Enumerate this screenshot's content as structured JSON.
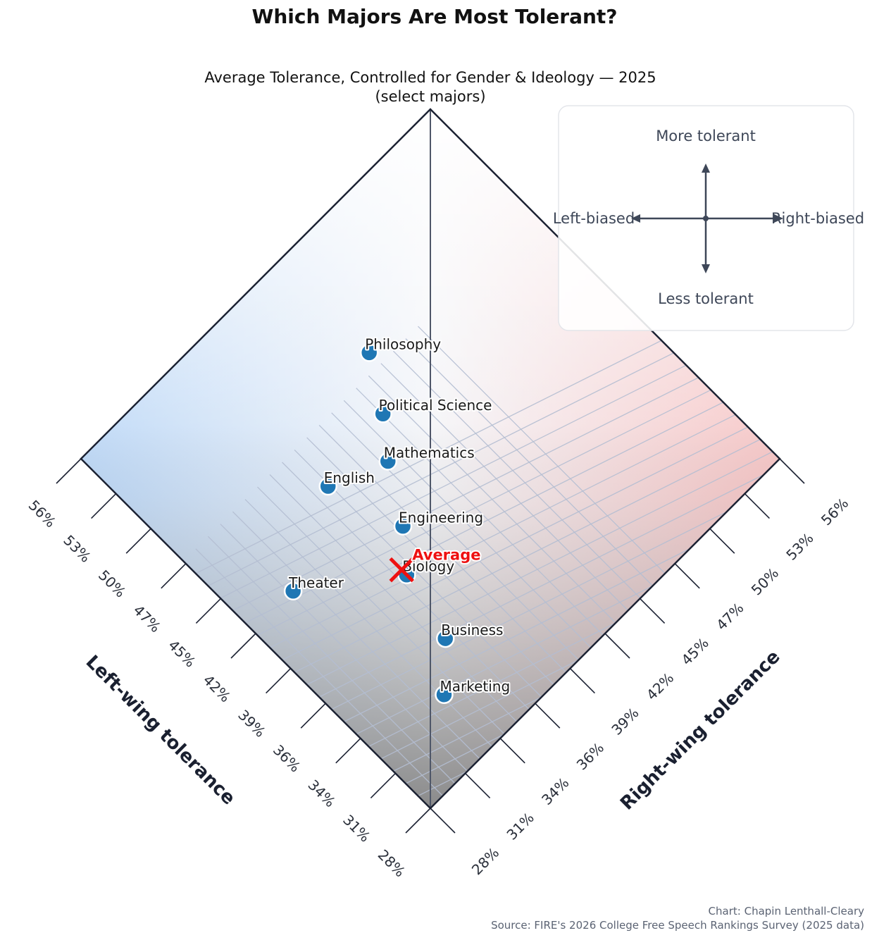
{
  "title": "Which Majors Are Most Tolerant?",
  "subtitle_line1": "Average Tolerance, Controlled for Gender & Ideology — 2025",
  "subtitle_line2": "(select majors)",
  "legend": {
    "up": "More tolerant",
    "down": "Less tolerant",
    "left": "Left-biased",
    "right": "Right-biased"
  },
  "credit_line1": "Chart: Chapin Lenthall-Cleary",
  "credit_line2": "Source: FIRE's 2026 College Free Speech Rankings Survey (2025 data)",
  "chart_data": {
    "type": "scatter",
    "title": "Which Majors Are Most Tolerant?",
    "xlabel": "Left-wing tolerance",
    "ylabel": "Right-wing tolerance",
    "xlim": [
      28,
      56
    ],
    "ylim": [
      28,
      56
    ],
    "tick_labels": [
      "28%",
      "31%",
      "34%",
      "36%",
      "39%",
      "42%",
      "45%",
      "47%",
      "50%",
      "53%",
      "56%"
    ],
    "grid": true,
    "colors": {
      "point": "#1f77b4",
      "average": "#ee1111",
      "left": "#bcd7f5",
      "right": "#f2c4c4",
      "low": "#8e8e8e"
    },
    "points": [
      {
        "name": "Philosophy",
        "x": 48.7,
        "y": 43.8
      },
      {
        "name": "Political Science",
        "x": 45.7,
        "y": 41.9
      },
      {
        "name": "Mathematics",
        "x": 43.6,
        "y": 40.2
      },
      {
        "name": "English",
        "x": 45.0,
        "y": 36.8
      },
      {
        "name": "Engineering",
        "x": 40.4,
        "y": 38.2
      },
      {
        "name": "Biology",
        "x": 38.3,
        "y": 36.4
      },
      {
        "name": "Theater",
        "x": 42.2,
        "y": 31.2
      },
      {
        "name": "Business",
        "x": 34.2,
        "y": 35.4
      },
      {
        "name": "Marketing",
        "x": 32.0,
        "y": 33.1
      }
    ],
    "average": {
      "name": "Average",
      "x": 38.7,
      "y": 36.4
    }
  }
}
